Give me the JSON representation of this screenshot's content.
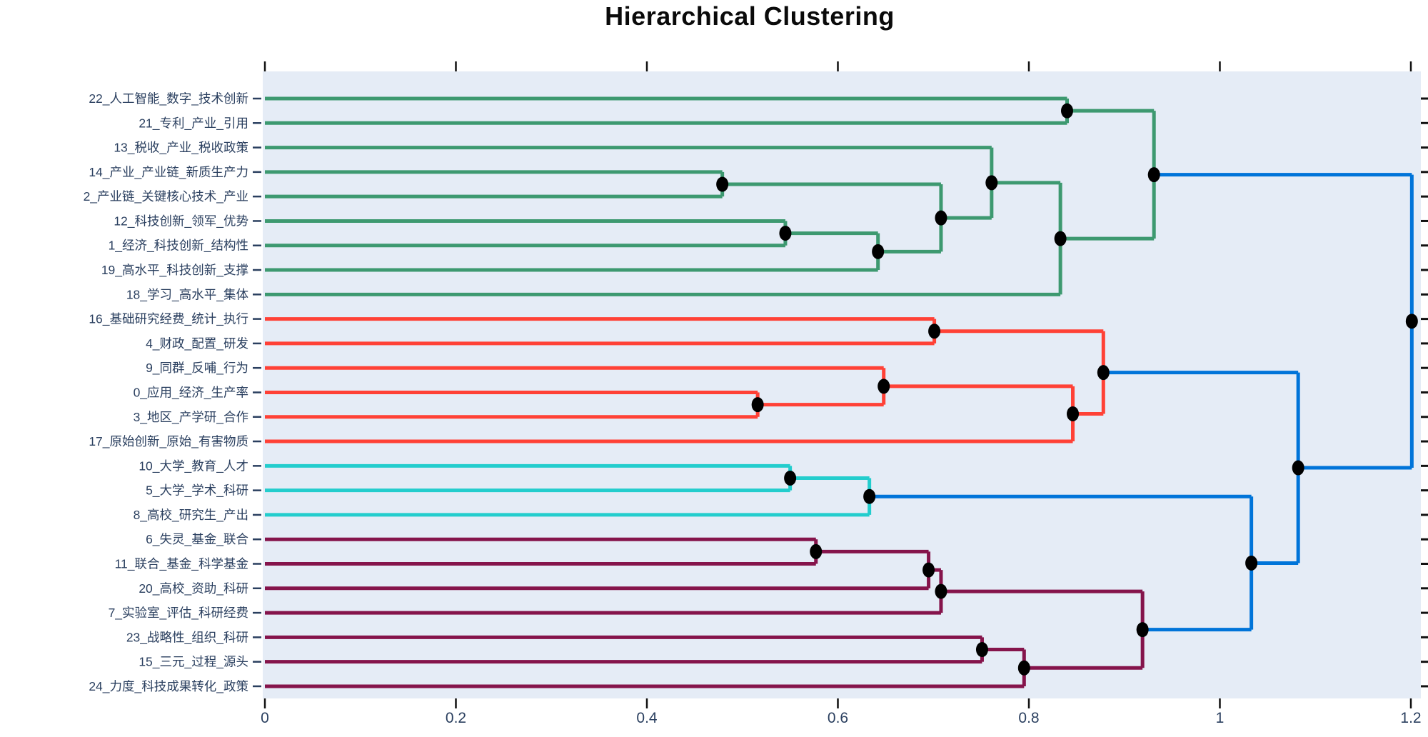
{
  "title": "Hierarchical Clustering",
  "chart_data": {
    "type": "dendrogram",
    "orientation": "horizontal",
    "title": "Hierarchical Clustering",
    "grid": false,
    "legend": null,
    "plot_bg": "#E5ECF6",
    "marker_color": "#000000",
    "label_color": "#2a3f5f",
    "tick_color": "#111111",
    "x_axis": {
      "range": [
        0,
        1.211
      ],
      "ticks": [
        0,
        0.2,
        0.4,
        0.6,
        0.8,
        1,
        1.2
      ],
      "tick_labels": [
        "0",
        "0.2",
        "0.4",
        "0.6",
        "0.8",
        "1",
        "1.2"
      ]
    },
    "colors": {
      "green": "#3D9970",
      "red": "#FF4136",
      "cyan": "#23CDCD",
      "maroon": "#85144b",
      "blue": "#0074D9"
    },
    "leaves": [
      "22_人工智能_数字_技术创新",
      "21_专利_产业_引用",
      "13_税收_产业_税收政策",
      "14_产业_产业链_新质生产力",
      "2_产业链_关键核心技术_产业",
      "12_科技创新_领军_优势",
      "1_经济_科技创新_结构性",
      "19_高水平_科技创新_支撑",
      "18_学习_高水平_集体",
      "16_基础研究经费_统计_执行",
      "4_财政_配置_研发",
      "9_同群_反哺_行为",
      "0_应用_经济_生产率",
      "3_地区_产学研_合作",
      "17_原始创新_原始_有害物质",
      "10_大学_教育_人才",
      "5_大学_学术_科研",
      "8_高校_研究生_产出",
      "6_失灵_基金_联合",
      "11_联合_基金_科学基金",
      "20_高校_资助_科研",
      "7_实验室_评估_科研经费",
      "23_战略性_组织_科研",
      "15_三元_过程_源头",
      "24_力度_科技成果转化_政策"
    ],
    "merges": [
      {
        "a": "L3",
        "b": "L4",
        "dist": 0.479,
        "color": "green"
      },
      {
        "a": "L5",
        "b": "L6",
        "dist": 0.545,
        "color": "green"
      },
      {
        "a": "M1",
        "b": "L7",
        "dist": 0.642,
        "color": "green"
      },
      {
        "a": "M0",
        "b": "M2",
        "dist": 0.708,
        "color": "green"
      },
      {
        "a": "L2",
        "b": "M3",
        "dist": 0.761,
        "color": "green"
      },
      {
        "a": "M4",
        "b": "L8",
        "dist": 0.833,
        "color": "green"
      },
      {
        "a": "L0",
        "b": "L1",
        "dist": 0.84,
        "color": "green"
      },
      {
        "a": "M6",
        "b": "M5",
        "dist": 0.931,
        "color": "green"
      },
      {
        "a": "L12",
        "b": "L13",
        "dist": 0.516,
        "color": "red"
      },
      {
        "a": "L11",
        "b": "M8",
        "dist": 0.648,
        "color": "red"
      },
      {
        "a": "L9",
        "b": "L10",
        "dist": 0.701,
        "color": "red"
      },
      {
        "a": "M9",
        "b": "L14",
        "dist": 0.846,
        "color": "red"
      },
      {
        "a": "M10",
        "b": "M11",
        "dist": 0.878,
        "color": "red"
      },
      {
        "a": "L15",
        "b": "L16",
        "dist": 0.55,
        "color": "cyan"
      },
      {
        "a": "M13",
        "b": "L17",
        "dist": 0.633,
        "color": "cyan"
      },
      {
        "a": "L18",
        "b": "L19",
        "dist": 0.577,
        "color": "maroon"
      },
      {
        "a": "M15",
        "b": "L20",
        "dist": 0.695,
        "color": "maroon"
      },
      {
        "a": "M16",
        "b": "L21",
        "dist": 0.708,
        "color": "maroon"
      },
      {
        "a": "L22",
        "b": "L23",
        "dist": 0.751,
        "color": "maroon"
      },
      {
        "a": "M18",
        "b": "L24",
        "dist": 0.795,
        "color": "maroon"
      },
      {
        "a": "M17",
        "b": "M19",
        "dist": 0.919,
        "color": "maroon"
      },
      {
        "a": "M14",
        "b": "M20",
        "dist": 1.033,
        "color": "blue"
      },
      {
        "a": "M12",
        "b": "M21",
        "dist": 1.082,
        "color": "blue"
      },
      {
        "a": "M7",
        "b": "M22",
        "dist": 1.201,
        "color": "blue"
      }
    ]
  }
}
